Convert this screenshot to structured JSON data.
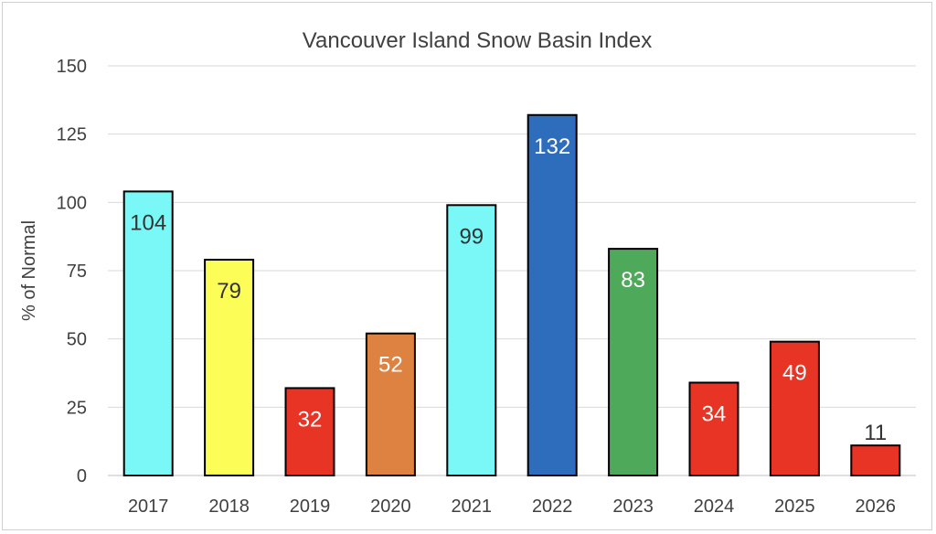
{
  "chart_data": {
    "type": "bar",
    "title": "Vancouver Island Snow Basin Index",
    "xlabel": "",
    "ylabel": "% of Normal",
    "ylim": [
      0,
      150
    ],
    "yticks": [
      "0",
      "25",
      "50",
      "75",
      "100",
      "125",
      "150"
    ],
    "grid": true,
    "categories": [
      "2017",
      "2018",
      "2019",
      "2020",
      "2021",
      "2022",
      "2023",
      "2024",
      "2025",
      "2026"
    ],
    "values": [
      104,
      79,
      32,
      52,
      99,
      132,
      83,
      34,
      49,
      11
    ],
    "bar_colors": [
      "#7af8f8",
      "#fdfd57",
      "#e83424",
      "#de8241",
      "#7af8f8",
      "#2e6cbc",
      "#4fa95a",
      "#e83424",
      "#e83424",
      "#e83424"
    ],
    "label_colors": [
      "#333333",
      "#333333",
      "#ffffff",
      "#ffffff",
      "#333333",
      "#ffffff",
      "#ffffff",
      "#ffffff",
      "#ffffff",
      "#333333"
    ]
  }
}
